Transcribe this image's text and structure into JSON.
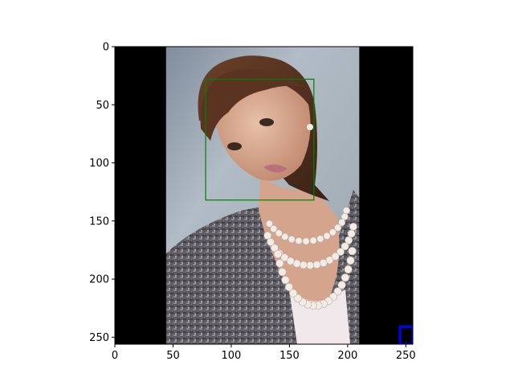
{
  "chart_data": {
    "type": "image",
    "title": "",
    "xlabel": "",
    "ylabel": "",
    "xlim": [
      0,
      256
    ],
    "ylim": [
      256,
      0
    ],
    "x_ticks": [
      0,
      50,
      100,
      150,
      200,
      250
    ],
    "y_ticks": [
      0,
      50,
      100,
      150,
      200,
      250
    ],
    "grid": false,
    "image": {
      "content": "portrait photograph of a woman wearing a pearl necklace and a tweed jacket",
      "width": 256,
      "height": 256,
      "letterbox": [
        {
          "name": "left-black-bar",
          "x": [
            0,
            44
          ],
          "y": [
            0,
            256
          ],
          "color": "#000000"
        },
        {
          "name": "right-black-bar",
          "x": [
            210,
            256
          ],
          "y": [
            0,
            256
          ],
          "color": "#000000"
        }
      ],
      "photo_x": [
        44,
        210
      ]
    },
    "annotations": [
      {
        "name": "face-bounding-box",
        "shape": "rectangle",
        "x0": 78,
        "y0": 28,
        "x1": 171,
        "y1": 132,
        "color": "#008000"
      },
      {
        "name": "blue-corner-box",
        "shape": "rectangle",
        "x0": 245,
        "y0": 241,
        "x1": 256,
        "y1": 256,
        "color": "#0000ff"
      }
    ]
  }
}
